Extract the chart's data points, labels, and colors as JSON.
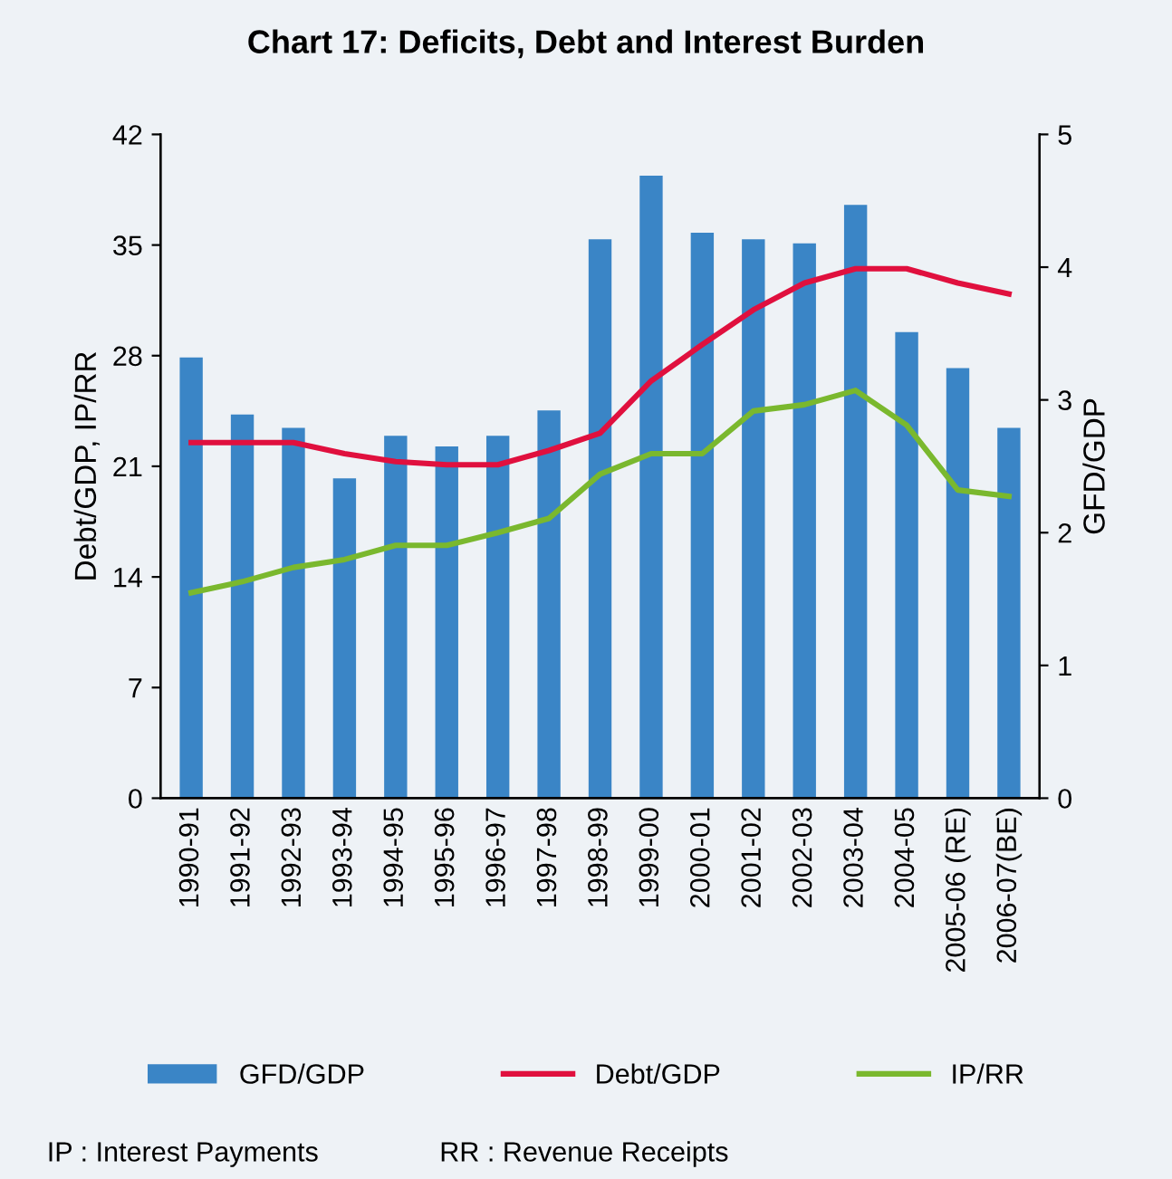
{
  "chart_data": {
    "type": "bar",
    "title": "Chart 17: Deficits, Debt and Interest Burden",
    "ylabel": "Debt/GDP, IP/RR",
    "y2label": "GFD/GDP",
    "categories": [
      "1990-91",
      "1991-92",
      "1992-93",
      "1993-94",
      "1994-95",
      "1995-96",
      "1996-97",
      "1997-98",
      "1998-99",
      "1999-00",
      "2000-01",
      "2001-02",
      "2002-03",
      "2003-04",
      "2004-05",
      "2005-06 (RE)",
      "2006-07(BE)"
    ],
    "series": [
      {
        "name": "GFD/GDP",
        "axis": "y2",
        "color": "#3a85c6",
        "values": [
          3.32,
          2.89,
          2.79,
          2.41,
          2.73,
          2.65,
          2.73,
          2.92,
          4.21,
          4.69,
          4.26,
          4.21,
          4.18,
          4.47,
          3.51,
          3.24,
          2.79
        ]
      },
      {
        "name": "Debt/GDP",
        "type": "line",
        "color": "#e0103e",
        "values": [
          22.5,
          22.5,
          22.5,
          21.8,
          21.3,
          21.1,
          21.1,
          22.0,
          23.1,
          26.4,
          28.7,
          30.9,
          32.6,
          33.5,
          33.5,
          32.6,
          31.9
        ]
      },
      {
        "name": "IP/RR",
        "type": "line",
        "color": "#7ab82e",
        "values": [
          13.0,
          13.7,
          14.6,
          15.1,
          16.0,
          16.0,
          16.8,
          17.7,
          20.5,
          21.8,
          21.8,
          24.5,
          24.9,
          25.8,
          23.6,
          19.5,
          19.1
        ]
      }
    ],
    "ylim": [
      0,
      42
    ],
    "yticks": [
      0,
      7,
      14,
      21,
      28,
      35,
      42
    ],
    "y2lim": [
      0,
      5
    ],
    "y2ticks": [
      0,
      1,
      2,
      3,
      4,
      5
    ],
    "grid": false,
    "legend": "bottom",
    "marker": "none",
    "line_style": "solid",
    "annotations": [
      "IP : Interest Payments",
      "RR : Revenue Receipts"
    ]
  }
}
